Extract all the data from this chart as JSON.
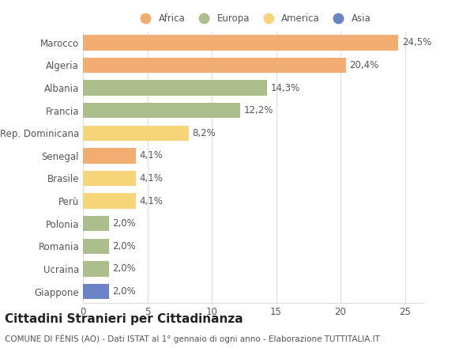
{
  "categories": [
    "Marocco",
    "Algeria",
    "Albania",
    "Francia",
    "Rep. Dominicana",
    "Senegal",
    "Brasile",
    "Perù",
    "Polonia",
    "Romania",
    "Ucraina",
    "Giappone"
  ],
  "values": [
    24.5,
    20.4,
    14.3,
    12.2,
    8.2,
    4.1,
    4.1,
    4.1,
    2.0,
    2.0,
    2.0,
    2.0
  ],
  "labels": [
    "24,5%",
    "20,4%",
    "14,3%",
    "12,2%",
    "8,2%",
    "4,1%",
    "4,1%",
    "4,1%",
    "2,0%",
    "2,0%",
    "2,0%",
    "2,0%"
  ],
  "colors": [
    "#F2AE72",
    "#F2AE72",
    "#ABBE8C",
    "#ABBE8C",
    "#F5D47A",
    "#F2AE72",
    "#F5D47A",
    "#F5D47A",
    "#ABBE8C",
    "#ABBE8C",
    "#ABBE8C",
    "#6B83C4"
  ],
  "legend": [
    {
      "label": "Africa",
      "color": "#F2AE72"
    },
    {
      "label": "Europa",
      "color": "#ABBE8C"
    },
    {
      "label": "America",
      "color": "#F5D47A"
    },
    {
      "label": "Asia",
      "color": "#6B83C4"
    }
  ],
  "title": "Cittadini Stranieri per Cittadinanza",
  "subtitle": "COMUNE DI FÉNIS (AO) - Dati ISTAT al 1° gennaio di ogni anno - Elaborazione TUTTITALIA.IT",
  "xlim": [
    0,
    26.5
  ],
  "xticks": [
    0,
    5,
    10,
    15,
    20,
    25
  ],
  "background_color": "#ffffff",
  "grid_color": "#dddddd",
  "bar_height": 0.68,
  "label_fontsize": 8.5,
  "tick_fontsize": 8.5,
  "title_fontsize": 11,
  "subtitle_fontsize": 7.5
}
